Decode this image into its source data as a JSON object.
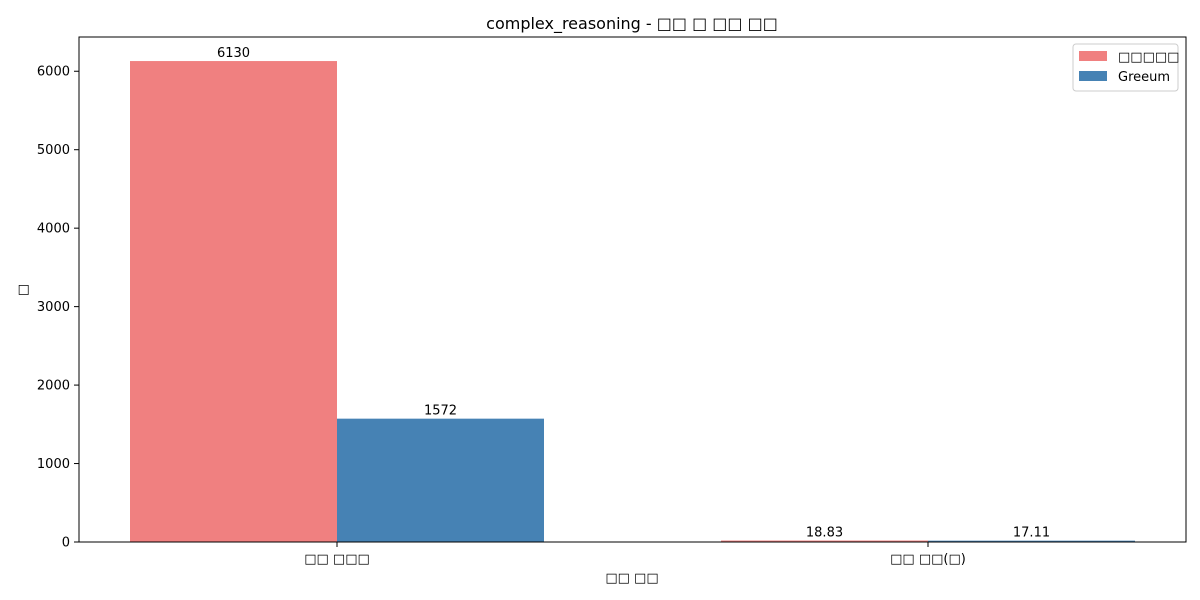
{
  "chart_data": {
    "type": "bar",
    "title": "complex_reasoning - □□ □ □□ □□",
    "xlabel": "□□ □□",
    "ylabel": "□",
    "categories": [
      "□□ □□□",
      "□□ □□(□)"
    ],
    "series": [
      {
        "name": "□□□□□",
        "values": [
          6130,
          18.83
        ],
        "color": "#f08080",
        "labels": [
          "6130",
          "18.83"
        ]
      },
      {
        "name": "Greeum",
        "values": [
          1572,
          17.11
        ],
        "color": "#4682b4",
        "labels": [
          "1572",
          "17.11"
        ]
      }
    ],
    "ylim": [
      0,
      6436.5
    ],
    "yticks": [
      0,
      1000,
      2000,
      3000,
      4000,
      5000,
      6000
    ],
    "legend_position": "top-right",
    "grid": false
  }
}
